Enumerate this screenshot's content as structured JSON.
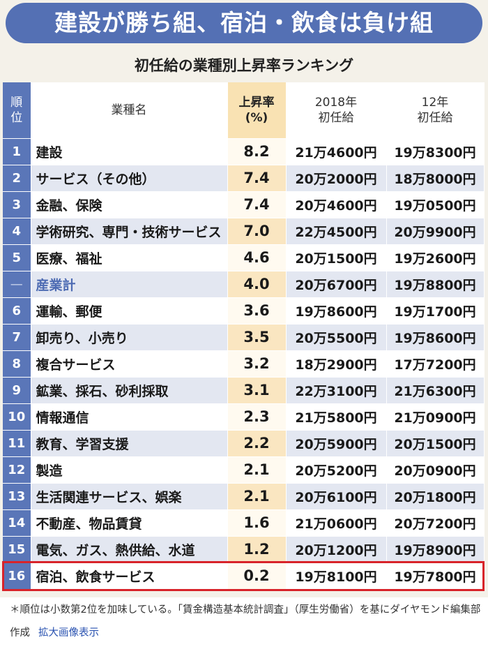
{
  "title": "建設が勝ち組、宿泊・飲食は負け組",
  "subtitle": "初任給の業種別上昇率ランキング",
  "headers": {
    "rank": "順位",
    "name": "業種名",
    "rate": "上昇率\n(%)",
    "y2018": "2018年\n初任給",
    "y2012": "12年\n初任給"
  },
  "chart_data": {
    "type": "table",
    "title": "初任給の業種別上昇率ランキング",
    "columns": [
      "順位",
      "業種名",
      "上昇率(%)",
      "2018年初任給",
      "12年初任給"
    ],
    "rows": [
      {
        "rank": "1",
        "name": "建設",
        "rate": "8.2",
        "y2018": "21万4600円",
        "y2012": "19万8300円"
      },
      {
        "rank": "2",
        "name": "サービス（その他）",
        "rate": "7.4",
        "y2018": "20万2000円",
        "y2012": "18万8000円"
      },
      {
        "rank": "3",
        "name": "金融、保険",
        "rate": "7.4",
        "y2018": "20万4600円",
        "y2012": "19万0500円"
      },
      {
        "rank": "4",
        "name": "学術研究、専門・技術サービス",
        "rate": "7.0",
        "y2018": "22万4500円",
        "y2012": "20万9900円"
      },
      {
        "rank": "5",
        "name": "医療、福祉",
        "rate": "4.6",
        "y2018": "20万1500円",
        "y2012": "19万2600円"
      },
      {
        "rank": "—",
        "name": "産業計",
        "rate": "4.0",
        "y2018": "20万6700円",
        "y2012": "19万8800円",
        "total": true
      },
      {
        "rank": "6",
        "name": "運輸、郵便",
        "rate": "3.6",
        "y2018": "19万8600円",
        "y2012": "19万1700円"
      },
      {
        "rank": "7",
        "name": "卸売り、小売り",
        "rate": "3.5",
        "y2018": "20万5500円",
        "y2012": "19万8600円"
      },
      {
        "rank": "8",
        "name": "複合サービス",
        "rate": "3.2",
        "y2018": "18万2900円",
        "y2012": "17万7200円"
      },
      {
        "rank": "9",
        "name": "鉱業、採石、砂利採取",
        "rate": "3.1",
        "y2018": "22万3100円",
        "y2012": "21万6300円"
      },
      {
        "rank": "10",
        "name": "情報通信",
        "rate": "2.3",
        "y2018": "21万5800円",
        "y2012": "21万0900円"
      },
      {
        "rank": "11",
        "name": "教育、学習支援",
        "rate": "2.2",
        "y2018": "20万5900円",
        "y2012": "20万1500円"
      },
      {
        "rank": "12",
        "name": "製造",
        "rate": "2.1",
        "y2018": "20万5200円",
        "y2012": "20万0900円"
      },
      {
        "rank": "13",
        "name": "生活関連サービス、娯楽",
        "rate": "2.1",
        "y2018": "20万6100円",
        "y2012": "20万1800円"
      },
      {
        "rank": "14",
        "name": "不動産、物品賃貸",
        "rate": "1.6",
        "y2018": "21万0600円",
        "y2012": "20万7200円"
      },
      {
        "rank": "15",
        "name": "電気、ガス、熱供給、水道",
        "rate": "1.2",
        "y2018": "20万1200円",
        "y2012": "19万8900円"
      },
      {
        "rank": "16",
        "name": "宿泊、飲食サービス",
        "rate": "0.2",
        "y2018": "19万8100円",
        "y2012": "19万7800円",
        "highlighted": true
      }
    ]
  },
  "note": "＊順位は小数第2位を加味している。「賃金構造基本統計調査」（厚生労働省）を基にダイヤモンド編集部作成",
  "link_text": "拡大画像表示",
  "colors": {
    "header_blue": "#5a76b8",
    "banner_blue": "#5470b4",
    "rate_header": "#f9e2b3",
    "highlight_border": "#d8232a",
    "total_text": "#4d6bb3"
  }
}
